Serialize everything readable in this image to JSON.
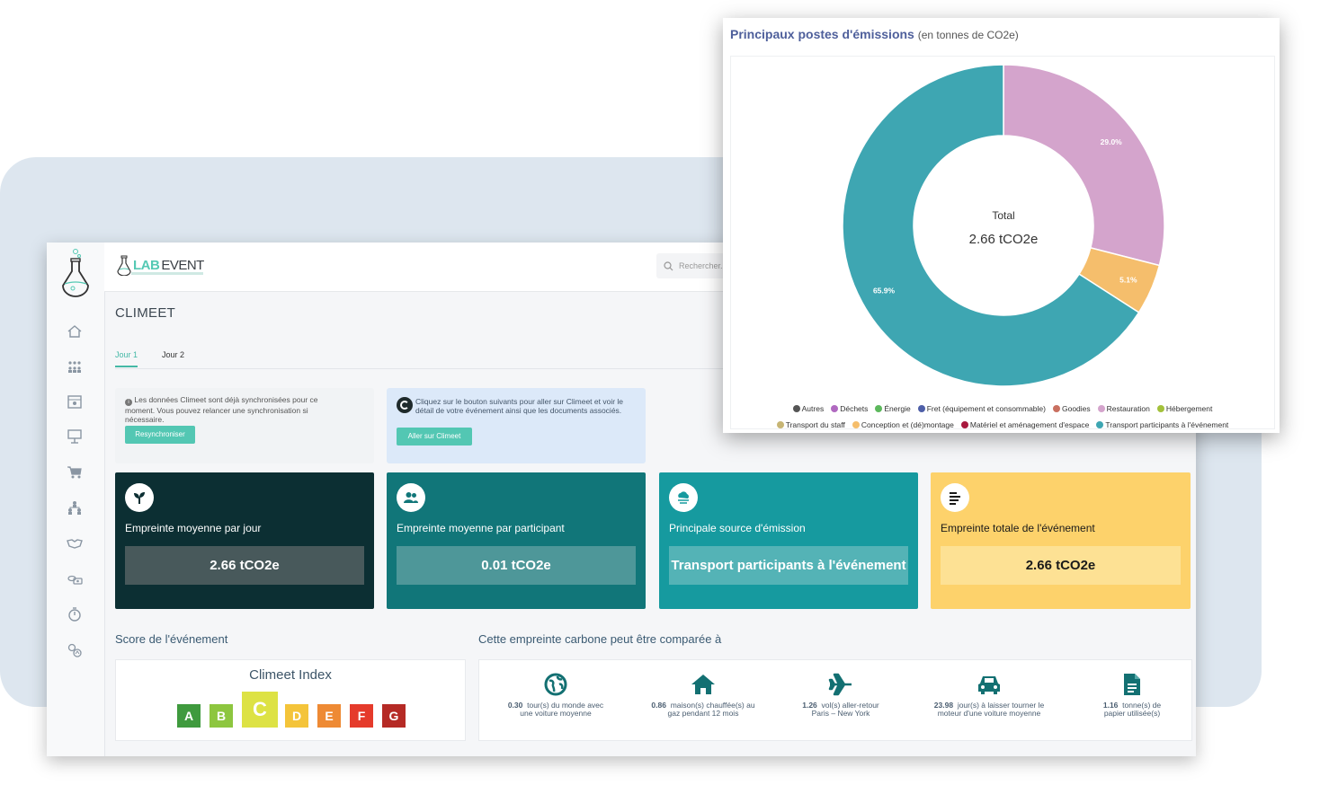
{
  "app": {
    "brand_lab": "LAB",
    "brand_event": "EVENT",
    "search_placeholder": "Rechercher..."
  },
  "sidebar": {
    "icons": [
      "home-icon",
      "people-icon",
      "calendar-icon",
      "presentation-icon",
      "cart-icon",
      "hierarchy-icon",
      "handshake-icon",
      "money-icon",
      "stopwatch-icon",
      "settings-eco-icon"
    ]
  },
  "page": {
    "title": "CLIMEET",
    "tabs": [
      {
        "label": "Jour 1",
        "active": true
      },
      {
        "label": "Jour 2",
        "active": false
      }
    ]
  },
  "info": {
    "sync_text": "Les données Climeet sont déjà synchronisées pour ce moment. Vous pouvez relancer une synchronisation si nécessaire.",
    "sync_button": "Resynchroniser",
    "climeet_text": "Cliquez sur le bouton suivants pour aller sur Climeet et voir le détail de votre événement ainsi que les documents associés.",
    "climeet_button": "Aller sur Climeet"
  },
  "cards": [
    {
      "label": "Empreinte moyenne par jour",
      "value": "2.66 tCO2e",
      "icon": "sprout-icon",
      "bg": "#0c2f33",
      "box": "#48595b",
      "fg": "#ffffff"
    },
    {
      "label": "Empreinte moyenne par participant",
      "value": "0.01 tCO2e",
      "icon": "users-icon",
      "bg": "#117679",
      "box": "#4e9799",
      "fg": "#ffffff"
    },
    {
      "label": "Principale source d'émission",
      "value": "Transport participants à l'événement",
      "icon": "cloud-icon",
      "bg": "#169a9f",
      "box": "#54b3b6",
      "fg": "#ffffff"
    },
    {
      "label": "Empreinte totale de l'événement",
      "value": "2.66 tCO2e",
      "icon": "list-icon",
      "bg": "#fdd26b",
      "box": "#fde194",
      "fg": "#1a1a1a"
    }
  ],
  "score": {
    "section_title": "Score de l'événement",
    "index_title": "Climeet Index",
    "grades": [
      {
        "letter": "A",
        "color": "#3f9a3e",
        "active": false
      },
      {
        "letter": "B",
        "color": "#8dc63f",
        "active": false
      },
      {
        "letter": "C",
        "color": "#dde244",
        "active": true
      },
      {
        "letter": "D",
        "color": "#f4c43a",
        "active": false
      },
      {
        "letter": "E",
        "color": "#ee8a34",
        "active": false
      },
      {
        "letter": "F",
        "color": "#e53b2b",
        "active": false
      },
      {
        "letter": "G",
        "color": "#b52a25",
        "active": false
      }
    ]
  },
  "comparison": {
    "section_title": "Cette empreinte carbone peut être comparée à",
    "items": [
      {
        "num": "0.30",
        "text1": "tour(s) du monde avec",
        "text2": "une voiture moyenne",
        "icon": "globe-icon"
      },
      {
        "num": "0.86",
        "text1": "maison(s) chauffée(s) au",
        "text2": "gaz pendant 12 mois",
        "icon": "house-icon"
      },
      {
        "num": "1.26",
        "text1": "vol(s) aller-retour",
        "text2": "Paris – New York",
        "icon": "plane-icon"
      },
      {
        "num": "23.98",
        "text1": "jour(s) à laisser tourner le",
        "text2": "moteur d'une voiture moyenne",
        "icon": "car-icon"
      },
      {
        "num": "1.16",
        "text1": "tonne(s) de",
        "text2": "papier utilisée(s)",
        "icon": "document-icon"
      }
    ]
  },
  "chart_window": {
    "title": "Principaux postes d'émissions",
    "subtitle": "(en tonnes de CO2e)"
  },
  "chart_data": {
    "type": "pie",
    "center_label": "Total",
    "center_value": "2.66 tCO2e",
    "slices": [
      {
        "name": "Restauration",
        "value": 29.0,
        "label": "29.0%",
        "color": "#d4a4cc"
      },
      {
        "name": "Conception et (dé)montage",
        "value": 5.1,
        "label": "5.1%",
        "color": "#f5be6c"
      },
      {
        "name": "Transport participants à l'événement",
        "value": 65.9,
        "label": "65.9%",
        "color": "#3ea6b2"
      }
    ],
    "legend_row1": [
      {
        "name": "Autres",
        "color": "#555555"
      },
      {
        "name": "Déchets",
        "color": "#b069c0"
      },
      {
        "name": "Énergie",
        "color": "#5cb85c"
      },
      {
        "name": "Fret (équipement et consommable)",
        "color": "#4e5fa8"
      },
      {
        "name": "Goodies",
        "color": "#c97060"
      },
      {
        "name": "Restauration",
        "color": "#d4a4cc"
      },
      {
        "name": "Hébergement",
        "color": "#a3c13b"
      }
    ],
    "legend_row2": [
      {
        "name": "Transport du staff",
        "color": "#c7b574"
      },
      {
        "name": "Conception et (dé)montage",
        "color": "#f5be6c"
      },
      {
        "name": "Matériel et aménagement d'espace",
        "color": "#a8183e"
      },
      {
        "name": "Transport participants à l'événement",
        "color": "#3ea6b2"
      }
    ]
  }
}
